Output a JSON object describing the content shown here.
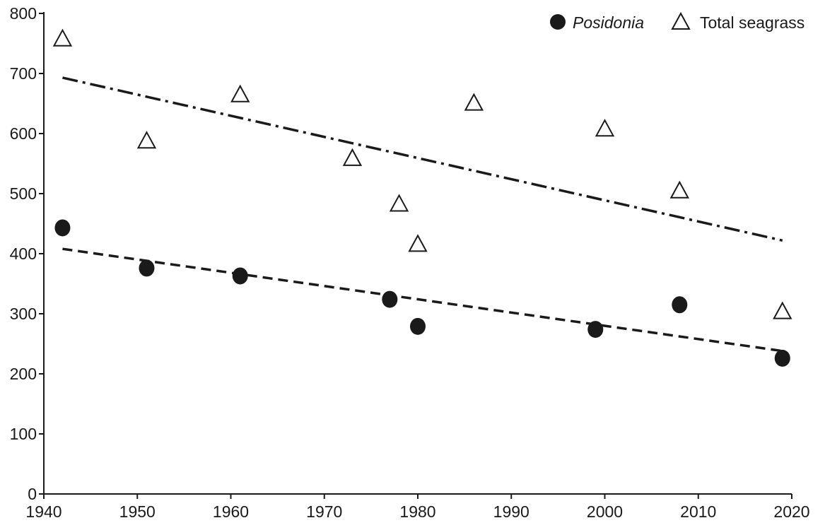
{
  "chart_data": {
    "type": "scatter",
    "title": "",
    "xlabel": "",
    "ylabel": "",
    "xlim": [
      1940,
      2020
    ],
    "ylim": [
      0,
      800
    ],
    "x_ticks": [
      1940,
      1950,
      1960,
      1970,
      1980,
      1990,
      2000,
      2010,
      2020
    ],
    "y_ticks": [
      0,
      100,
      200,
      300,
      400,
      500,
      600,
      700,
      800
    ],
    "grid": false,
    "legend_position": "top-right",
    "series": [
      {
        "name": "Posidonia",
        "marker": "filled-circle",
        "color": "#1a1a1a",
        "points": [
          {
            "x": 1942,
            "y": 443
          },
          {
            "x": 1951,
            "y": 376
          },
          {
            "x": 1961,
            "y": 363
          },
          {
            "x": 1977,
            "y": 324
          },
          {
            "x": 1980,
            "y": 279
          },
          {
            "x": 1999,
            "y": 274
          },
          {
            "x": 2008,
            "y": 315
          },
          {
            "x": 2019,
            "y": 226
          }
        ],
        "trendline": {
          "style": "dashed",
          "start": {
            "x": 1942,
            "y": 408
          },
          "end": {
            "x": 2019,
            "y": 238
          }
        }
      },
      {
        "name": "Total seagrass",
        "marker": "open-triangle",
        "color": "#1a1a1a",
        "points": [
          {
            "x": 1942,
            "y": 758
          },
          {
            "x": 1951,
            "y": 588
          },
          {
            "x": 1961,
            "y": 665
          },
          {
            "x": 1973,
            "y": 559
          },
          {
            "x": 1978,
            "y": 483
          },
          {
            "x": 1980,
            "y": 416
          },
          {
            "x": 1986,
            "y": 651
          },
          {
            "x": 2000,
            "y": 608
          },
          {
            "x": 2008,
            "y": 505
          },
          {
            "x": 2019,
            "y": 304
          }
        ],
        "trendline": {
          "style": "dash-dot",
          "start": {
            "x": 1942,
            "y": 693
          },
          "end": {
            "x": 2019,
            "y": 422
          }
        }
      }
    ]
  }
}
